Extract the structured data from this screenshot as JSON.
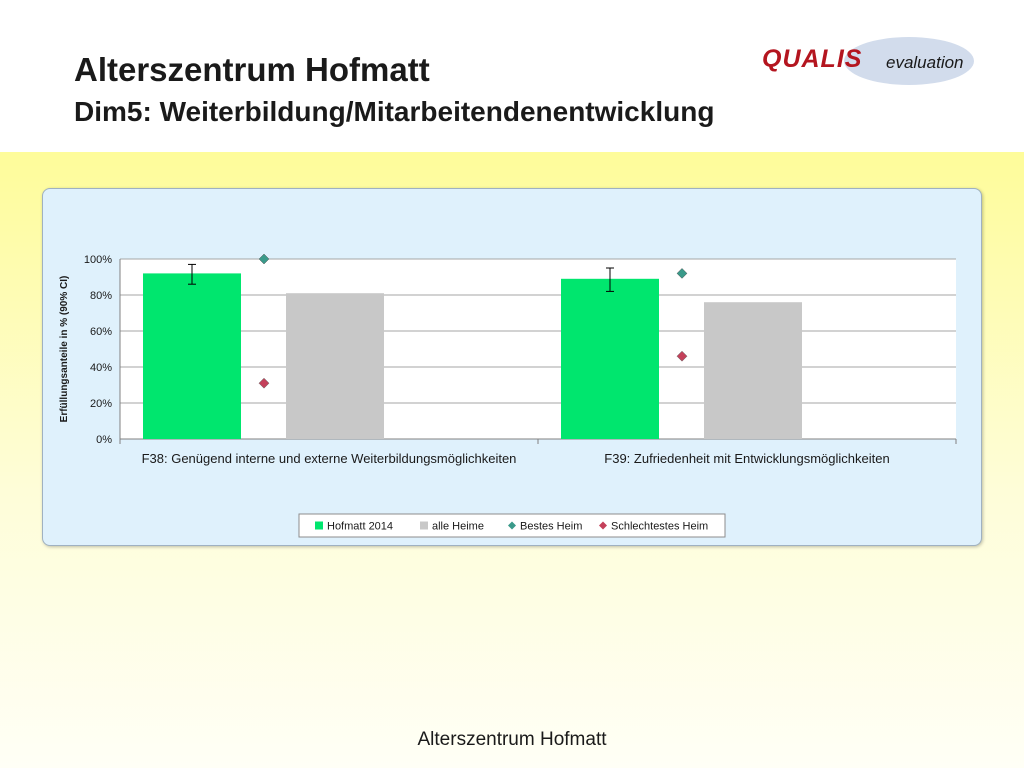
{
  "header": {
    "title": "Alterszentrum Hofmatt",
    "subtitle": "Dim5: Weiterbildung/Mitarbeitendenentwicklung"
  },
  "logo": {
    "brand": "QUALIS",
    "suffix": "evaluation"
  },
  "footer": {
    "text": "Alterszentrum Hofmatt"
  },
  "colors": {
    "hofmatt": "#00e66e",
    "alle_heime": "#c8c8c8",
    "bestes_heim": "#3a9a8a",
    "schlechtestes_heim": "#c4405a",
    "panel_bg": "#dff1fc",
    "band": "#fefc9a"
  },
  "chart_data": {
    "type": "bar",
    "ylabel": "Erfüllungsanteile  in % (90% CI)",
    "ylim": [
      0,
      100
    ],
    "yticks": [
      0,
      20,
      40,
      60,
      80,
      100
    ],
    "ytick_labels": [
      "0%",
      "20%",
      "40%",
      "60%",
      "80%",
      "100%"
    ],
    "grid": true,
    "legend_position": "bottom",
    "categories": [
      "F38: Genügend interne und externe Weiterbildungsmöglichkeiten",
      "F39: Zufriedenheit mit Entwicklungsmöglichkeiten"
    ],
    "series": [
      {
        "name": "Hofmatt 2014",
        "type": "bar",
        "values": [
          92,
          89
        ],
        "ci_low": [
          86,
          82
        ],
        "ci_high": [
          97,
          95
        ]
      },
      {
        "name": "alle Heime",
        "type": "bar",
        "values": [
          81,
          76
        ]
      },
      {
        "name": "Bestes Heim",
        "type": "marker",
        "values": [
          100,
          92
        ]
      },
      {
        "name": "Schlechtestes Heim",
        "type": "marker",
        "values": [
          31,
          46
        ]
      }
    ]
  }
}
